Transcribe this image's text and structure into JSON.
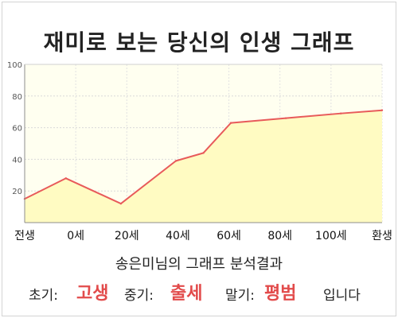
{
  "page": {
    "title": "재미로 보는 당신의 인생 그래프"
  },
  "chart_data": {
    "type": "area",
    "x_tick_labels": [
      "전생",
      "0세",
      "20세",
      "40세",
      "60세",
      "80세",
      "100세",
      "환생"
    ],
    "y_ticks": [
      20,
      40,
      60,
      80,
      100
    ],
    "ylim": [
      0,
      100
    ],
    "grid": true,
    "series": [
      {
        "x": [
          -15,
          0,
          20,
          40,
          50,
          60,
          80,
          100,
          115
        ],
        "y": [
          15,
          28,
          12,
          39,
          44,
          63,
          66,
          69,
          71
        ]
      }
    ],
    "colors": {
      "line": "#e85a5a",
      "fill": "#fffbc2",
      "plot_bg": "#fffff0"
    }
  },
  "summary": {
    "caption": "송은미님의 그래프 분석결과",
    "early_label": "초기:",
    "early_value": "고생",
    "middle_label": "중기:",
    "middle_value": "출세",
    "late_label": "말기:",
    "late_value": "평범",
    "ending": "입니다"
  }
}
